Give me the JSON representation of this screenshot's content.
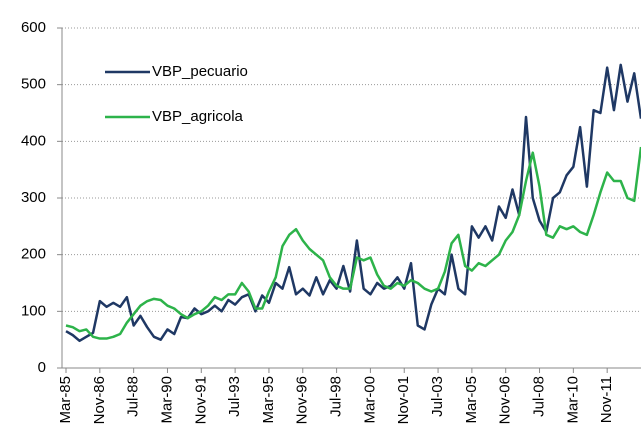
{
  "chart_data": {
    "type": "line",
    "categories": [
      "Mar-85",
      null,
      null,
      null,
      null,
      "Nov-86",
      null,
      null,
      null,
      null,
      "Jul-88",
      null,
      null,
      null,
      null,
      "Mar-90",
      null,
      null,
      null,
      null,
      "Nov-91",
      null,
      null,
      null,
      null,
      "Jul-93",
      null,
      null,
      null,
      null,
      "Mar-95",
      null,
      null,
      null,
      null,
      "Nov-96",
      null,
      null,
      null,
      null,
      "Jul-98",
      null,
      null,
      null,
      null,
      "Mar-00",
      null,
      null,
      null,
      null,
      "Nov-01",
      null,
      null,
      null,
      null,
      "Jul-03",
      null,
      null,
      null,
      null,
      "Mar-05",
      null,
      null,
      null,
      null,
      "Nov-06",
      null,
      null,
      null,
      null,
      "Jul-08",
      null,
      null,
      null,
      null,
      "Mar-10",
      null,
      null,
      null,
      null,
      "Nov-11",
      null,
      null,
      null,
      null,
      null
    ],
    "series": [
      {
        "name": "VBP_pecuario",
        "color": "#1f3864",
        "values": [
          65,
          58,
          48,
          55,
          62,
          118,
          108,
          115,
          108,
          125,
          75,
          92,
          72,
          55,
          50,
          68,
          60,
          90,
          88,
          105,
          95,
          100,
          110,
          100,
          120,
          112,
          125,
          130,
          100,
          128,
          115,
          150,
          140,
          178,
          130,
          140,
          128,
          160,
          130,
          155,
          140,
          180,
          135,
          225,
          140,
          130,
          150,
          140,
          145,
          160,
          140,
          185,
          75,
          68,
          112,
          140,
          130,
          200,
          140,
          130,
          250,
          230,
          250,
          225,
          285,
          265,
          315,
          270,
          443,
          300,
          260,
          240,
          300,
          310,
          340,
          355,
          425,
          320,
          455,
          450,
          530,
          455,
          535,
          470,
          520,
          440
        ]
      },
      {
        "name": "VBP_agricola",
        "color": "#2db34a",
        "values": [
          75,
          72,
          65,
          68,
          55,
          52,
          52,
          55,
          60,
          80,
          95,
          110,
          118,
          122,
          120,
          110,
          105,
          95,
          88,
          95,
          100,
          110,
          125,
          120,
          130,
          130,
          150,
          135,
          105,
          105,
          135,
          160,
          215,
          235,
          245,
          225,
          210,
          200,
          190,
          160,
          145,
          140,
          140,
          195,
          190,
          195,
          165,
          145,
          140,
          150,
          145,
          155,
          150,
          140,
          135,
          140,
          170,
          220,
          235,
          180,
          172,
          185,
          180,
          190,
          200,
          225,
          240,
          270,
          330,
          380,
          320,
          235,
          230,
          250,
          245,
          250,
          240,
          235,
          270,
          310,
          345,
          330,
          330,
          300,
          295,
          390
        ]
      }
    ],
    "ylim": [
      0,
      600
    ],
    "yticks": [
      0,
      100,
      200,
      300,
      400,
      500,
      600
    ],
    "grid": true,
    "legend": "upper-left"
  }
}
